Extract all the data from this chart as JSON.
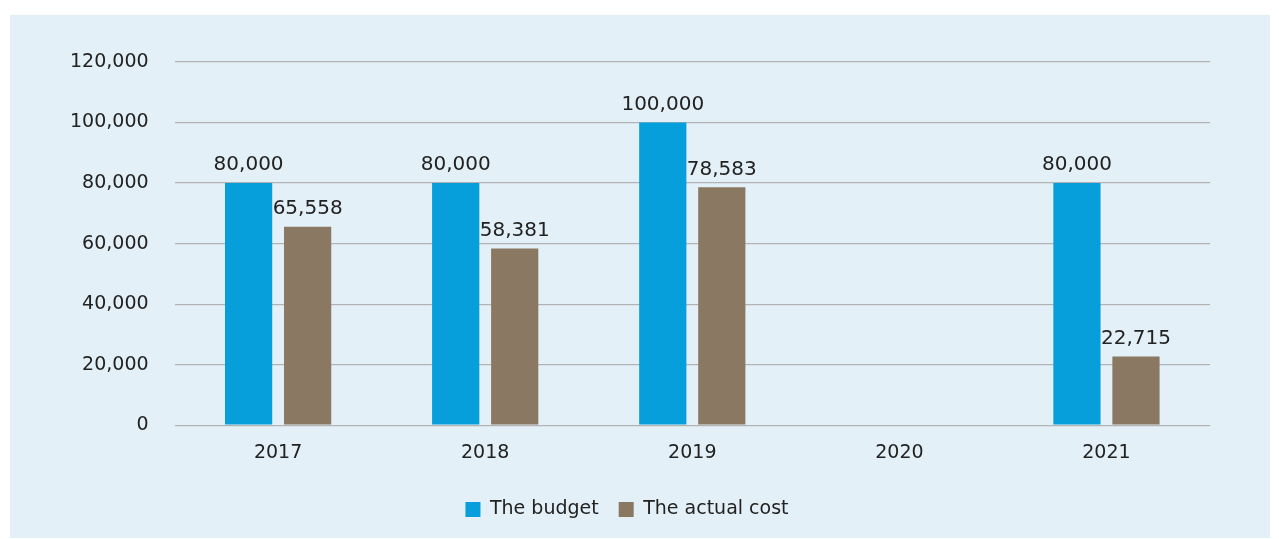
{
  "chart_data": {
    "type": "bar",
    "categories": [
      "2017",
      "2018",
      "2019",
      "2020",
      "2021"
    ],
    "series": [
      {
        "name": "The budget",
        "color": "#069fdc",
        "values": [
          80000,
          80000,
          100000,
          null,
          80000
        ],
        "value_labels": [
          "80,000",
          "80,000",
          "100,000",
          null,
          "80,000"
        ]
      },
      {
        "name": "The actual cost",
        "color": "#8a7862",
        "values": [
          65558,
          58381,
          78583,
          null,
          22715
        ],
        "value_labels": [
          "65,558",
          "58,381",
          "78,583",
          null,
          "22,715"
        ]
      }
    ],
    "ylim": [
      0,
      120000
    ],
    "yticks": [
      {
        "value": 0,
        "label": "0"
      },
      {
        "value": 20000,
        "label": "20,000"
      },
      {
        "value": 40000,
        "label": "40,000"
      },
      {
        "value": 60000,
        "label": "60,000"
      },
      {
        "value": 80000,
        "label": "80,000"
      },
      {
        "value": 100000,
        "label": "100,000"
      },
      {
        "value": 120000,
        "label": "120,000"
      }
    ],
    "grid": "y",
    "legend": "bottom"
  }
}
